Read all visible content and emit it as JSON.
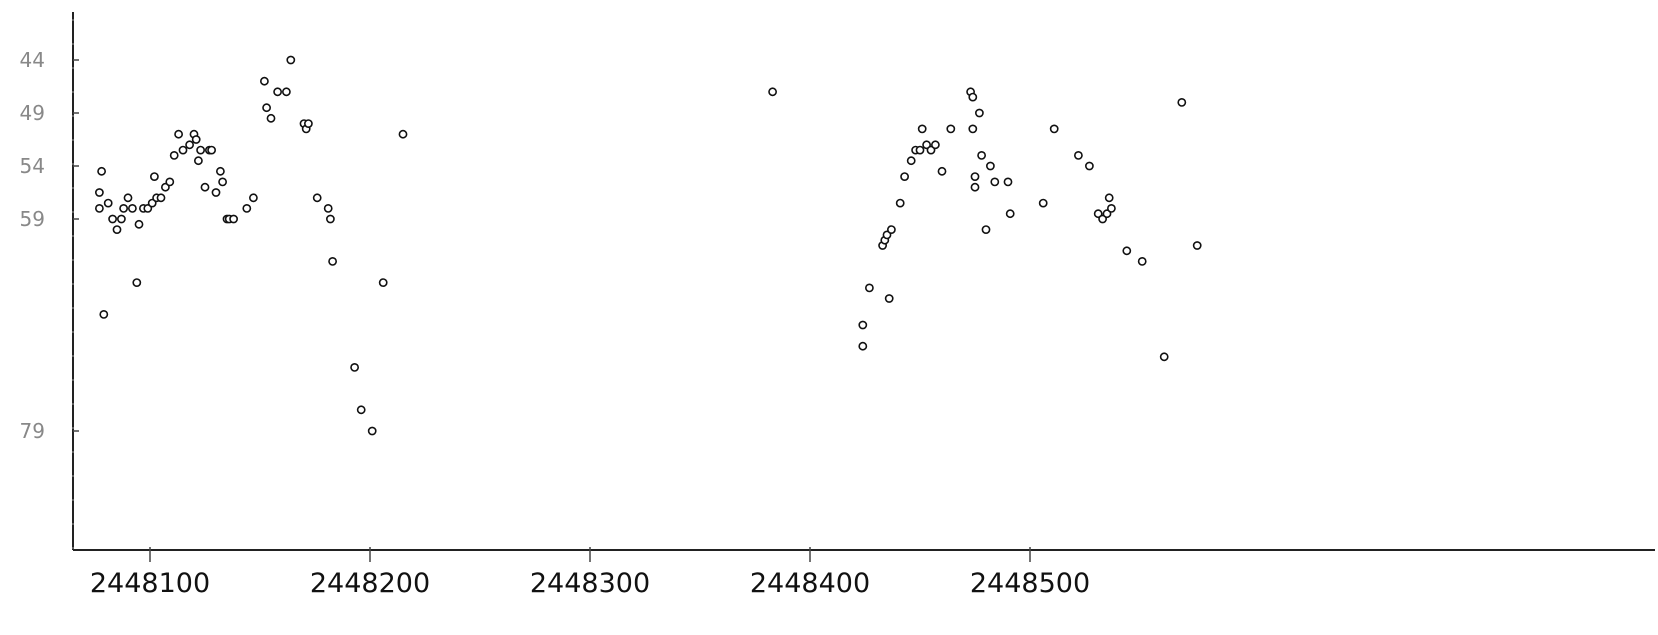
{
  "chart_data": {
    "type": "scatter",
    "title": "",
    "xlabel": "",
    "ylabel": "",
    "xlim": [
      2448070,
      2448720
    ],
    "ylim": [
      87,
      40
    ],
    "y_inverted": true,
    "grid": false,
    "x_ticks": [
      2448100,
      2448200,
      2448300,
      2448400,
      2448500
    ],
    "x_tick_labels": [
      "2448100",
      "2448200",
      "2448300",
      "2448400",
      "2448500"
    ],
    "y_ticks": [
      44,
      49,
      54,
      59,
      79
    ],
    "y_tick_labels": [
      "44",
      "49",
      "54",
      "59",
      "79"
    ],
    "marker": "open-circle",
    "colors": {
      "marker": "#111111",
      "axis": "#222222",
      "y_tick_text": "#888888"
    },
    "series": [
      {
        "points": [
          [
            2448077,
            56.5
          ],
          [
            2448077,
            58
          ],
          [
            2448078,
            54.5
          ],
          [
            2448079,
            68
          ],
          [
            2448081,
            57.5
          ],
          [
            2448083,
            59
          ],
          [
            2448085,
            60
          ],
          [
            2448087,
            59
          ],
          [
            2448088,
            58
          ],
          [
            2448090,
            57
          ],
          [
            2448092,
            58
          ],
          [
            2448094,
            65
          ],
          [
            2448095,
            59.5
          ],
          [
            2448097,
            58
          ],
          [
            2448099,
            58
          ],
          [
            2448101,
            57.5
          ],
          [
            2448102,
            55
          ],
          [
            2448103,
            57
          ],
          [
            2448105,
            57
          ],
          [
            2448107,
            56
          ],
          [
            2448109,
            55.5
          ],
          [
            2448111,
            53
          ],
          [
            2448113,
            51
          ],
          [
            2448115,
            52.5
          ],
          [
            2448118,
            52
          ],
          [
            2448120,
            51
          ],
          [
            2448121,
            51.5
          ],
          [
            2448122,
            53.5
          ],
          [
            2448123,
            52.5
          ],
          [
            2448125,
            56
          ],
          [
            2448127,
            52.5
          ],
          [
            2448128,
            52.5
          ],
          [
            2448130,
            56.5
          ],
          [
            2448132,
            54.5
          ],
          [
            2448133,
            55.5
          ],
          [
            2448135,
            59
          ],
          [
            2448136,
            59
          ],
          [
            2448138,
            59
          ],
          [
            2448144,
            58
          ],
          [
            2448147,
            57
          ],
          [
            2448152,
            46
          ],
          [
            2448153,
            48.5
          ],
          [
            2448155,
            49.5
          ],
          [
            2448158,
            47
          ],
          [
            2448162,
            47
          ],
          [
            2448164,
            44
          ],
          [
            2448170,
            50
          ],
          [
            2448171,
            50.5
          ],
          [
            2448172,
            50
          ],
          [
            2448176,
            57
          ],
          [
            2448181,
            58
          ],
          [
            2448182,
            59
          ],
          [
            2448183,
            63
          ],
          [
            2448193,
            73
          ],
          [
            2448196,
            77
          ],
          [
            2448201,
            79
          ],
          [
            2448206,
            65
          ],
          [
            2448215,
            51
          ],
          [
            2448383,
            47
          ],
          [
            2448424,
            69
          ],
          [
            2448424,
            71
          ],
          [
            2448427,
            65.5
          ],
          [
            2448433,
            61.5
          ],
          [
            2448434,
            61
          ],
          [
            2448435,
            60.5
          ],
          [
            2448436,
            66.5
          ],
          [
            2448437,
            60
          ],
          [
            2448441,
            57.5
          ],
          [
            2448443,
            55
          ],
          [
            2448446,
            53.5
          ],
          [
            2448448,
            52.5
          ],
          [
            2448450,
            52.5
          ],
          [
            2448451,
            50.5
          ],
          [
            2448453,
            52
          ],
          [
            2448455,
            52.5
          ],
          [
            2448457,
            52
          ],
          [
            2448460,
            54.5
          ],
          [
            2448464,
            50.5
          ],
          [
            2448473,
            47
          ],
          [
            2448474,
            47.5
          ],
          [
            2448474,
            50.5
          ],
          [
            2448475,
            55
          ],
          [
            2448475,
            56
          ],
          [
            2448477,
            49
          ],
          [
            2448478,
            53
          ],
          [
            2448480,
            60
          ],
          [
            2448482,
            54
          ],
          [
            2448484,
            55.5
          ],
          [
            2448490,
            55.5
          ],
          [
            2448491,
            58.5
          ],
          [
            2448506,
            57.5
          ],
          [
            2448511,
            50.5
          ],
          [
            2448522,
            53
          ],
          [
            2448527,
            54
          ],
          [
            2448531,
            58.5
          ],
          [
            2448533,
            59
          ],
          [
            2448535,
            58.5
          ],
          [
            2448536,
            57
          ],
          [
            2448537,
            58
          ],
          [
            2448544,
            62
          ],
          [
            2448551,
            63
          ],
          [
            2448561,
            72
          ],
          [
            2448569,
            48
          ],
          [
            2448576,
            61.5
          ]
        ]
      }
    ]
  }
}
